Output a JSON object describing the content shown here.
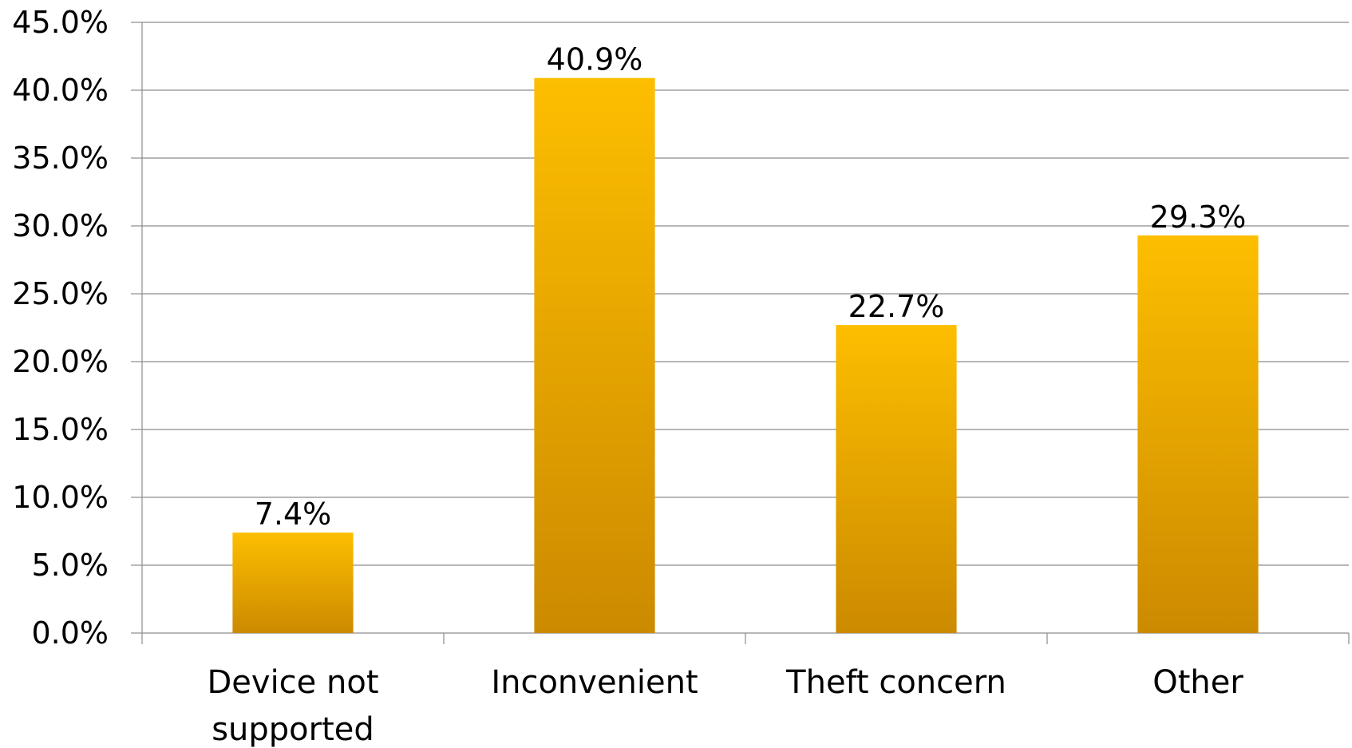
{
  "chart_data": {
    "type": "bar",
    "title": "",
    "xlabel": "",
    "ylabel": "",
    "categories": [
      [
        "Device not",
        "supported"
      ],
      [
        "Inconvenient"
      ],
      [
        "Theft concern"
      ],
      [
        "Other"
      ]
    ],
    "values": [
      7.4,
      40.9,
      22.7,
      29.3
    ],
    "data_labels": [
      "7.4%",
      "40.9%",
      "22.7%",
      "29.3%"
    ],
    "ylim": [
      0,
      45
    ],
    "yticks": [
      0,
      5,
      10,
      15,
      20,
      25,
      30,
      35,
      40,
      45
    ],
    "ytick_labels": [
      "0.0%",
      "5.0%",
      "10.0%",
      "15.0%",
      "20.0%",
      "25.0%",
      "30.0%",
      "35.0%",
      "40.0%",
      "45.0%"
    ],
    "grid": true,
    "legend": "none",
    "colors": {
      "bar_top": "#FDBE00",
      "bar_bottom": "#CC8A00",
      "grid": "#8C8C8C",
      "axis": "#8C8C8C"
    }
  }
}
